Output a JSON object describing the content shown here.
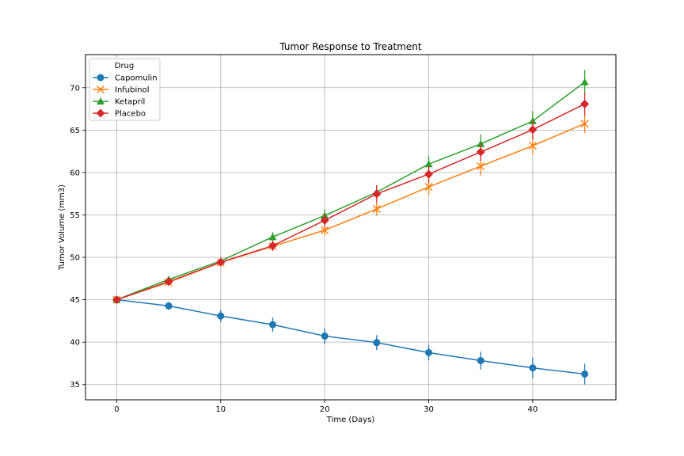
{
  "chart_data": {
    "type": "line",
    "title": "Tumor Response to Treatment",
    "xlabel": "Time (Days)",
    "ylabel": "Tumor Volume (mm3)",
    "xlim": [
      -3,
      48
    ],
    "ylim": [
      33.2,
      73.9
    ],
    "xticks": [
      0,
      10,
      20,
      30,
      40
    ],
    "yticks": [
      35,
      40,
      45,
      50,
      55,
      60,
      65,
      70
    ],
    "grid": true,
    "legend_title": "Drug",
    "legend_position": "upper-left",
    "x": [
      0,
      5,
      10,
      15,
      20,
      25,
      30,
      35,
      40,
      45
    ],
    "series": [
      {
        "name": "Capomulin",
        "color": "#1f77b4",
        "marker": "circle",
        "values": [
          45.0,
          44.27,
          43.08,
          42.06,
          40.72,
          39.94,
          38.77,
          37.82,
          36.96,
          36.24
        ],
        "errors": [
          0.0,
          0.45,
          0.7,
          0.84,
          0.91,
          0.88,
          0.93,
          1.05,
          1.22,
          1.22
        ]
      },
      {
        "name": "Infubinol",
        "color": "#ff7f0e",
        "marker": "x",
        "values": [
          45.0,
          47.06,
          49.4,
          51.3,
          53.2,
          55.7,
          58.3,
          60.74,
          63.16,
          65.76
        ],
        "errors": [
          0.0,
          0.24,
          0.44,
          0.57,
          0.6,
          0.81,
          0.94,
          1.1,
          1.05,
          1.14
        ]
      },
      {
        "name": "Ketapril",
        "color": "#2ca02c",
        "marker": "triangle",
        "values": [
          45.0,
          47.39,
          49.58,
          52.4,
          54.92,
          57.68,
          60.99,
          63.37,
          66.07,
          70.66
        ],
        "errors": [
          0.0,
          0.26,
          0.36,
          0.58,
          0.73,
          0.76,
          0.93,
          1.13,
          1.16,
          1.45
        ]
      },
      {
        "name": "Placebo",
        "color": "#d62728",
        "marker": "diamond",
        "values": [
          45.0,
          47.13,
          49.42,
          51.36,
          54.36,
          57.48,
          59.81,
          62.42,
          65.05,
          68.08
        ],
        "errors": [
          0.0,
          0.22,
          0.4,
          0.61,
          0.84,
          1.03,
          1.02,
          1.01,
          1.12,
          1.33
        ]
      }
    ]
  }
}
